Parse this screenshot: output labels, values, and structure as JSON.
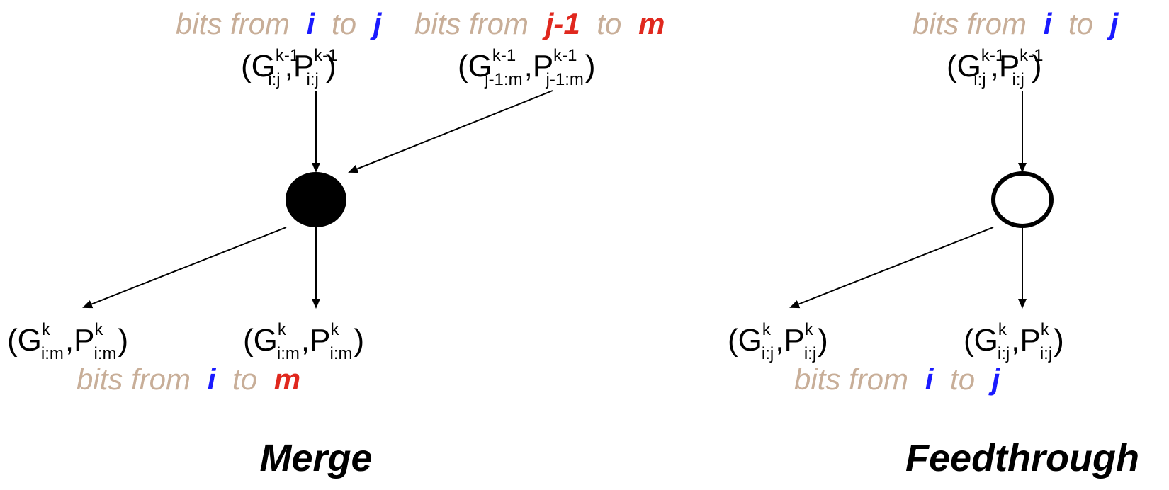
{
  "caption_parts": {
    "bits_from": "bits from",
    "to": "to"
  },
  "vars": {
    "i": "i",
    "j": "j",
    "j_minus_1": "j-1",
    "m": "m"
  },
  "labels": {
    "G": "G",
    "P": "P",
    "comma": ",",
    "open": "(",
    "close": ")",
    "k_minus_1": "k-1",
    "k": "k",
    "i_j": "i:j",
    "i_m": "i:m",
    "jm1_m": "j-1:m"
  },
  "titles": {
    "merge": "Merge",
    "feedthrough": "Feedthrough"
  },
  "colors": {
    "caption": "#c8ae98",
    "index_blue": "#1a1aff",
    "index_red": "#e0281e",
    "merge_node_fill": "#000000",
    "feedthrough_node_fill": "#ffffff"
  }
}
